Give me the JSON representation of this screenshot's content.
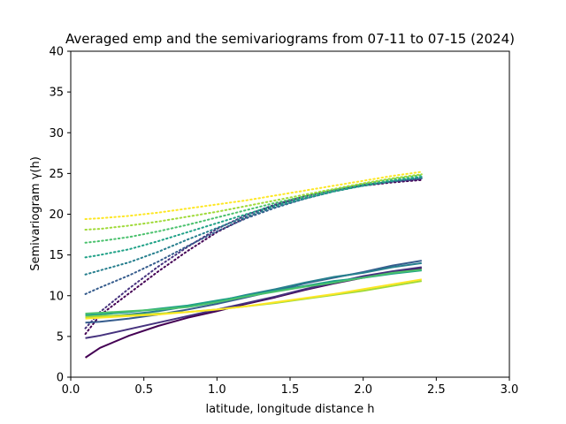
{
  "chart_data": {
    "type": "line",
    "title": "Averaged emp and the semivariograms from 07-11 to 07-15 (2024)",
    "xlabel": "latitude, longitude distance h",
    "ylabel": "Semivariogram γ(h)",
    "xlim": [
      0.0,
      3.0
    ],
    "ylim": [
      0,
      40
    ],
    "xticks": [
      "0.0",
      "0.5",
      "1.0",
      "1.5",
      "2.0",
      "2.5",
      "3.0"
    ],
    "yticks": [
      "0",
      "5",
      "10",
      "15",
      "20",
      "25",
      "30",
      "35",
      "40"
    ],
    "grid": false,
    "legend": false,
    "x": [
      0.1,
      0.2,
      0.4,
      0.6,
      0.8,
      1.0,
      1.2,
      1.4,
      1.6,
      1.8,
      2.0,
      2.2,
      2.4
    ],
    "empirical_series": [
      {
        "color": "#440154",
        "values": [
          2.4,
          3.6,
          5.1,
          6.3,
          7.3,
          8.1,
          9.0,
          9.8,
          10.7,
          11.5,
          12.2,
          12.9,
          13.4
        ]
      },
      {
        "color": "#46327e",
        "values": [
          4.8,
          5.1,
          5.9,
          6.7,
          7.5,
          8.3,
          9.1,
          9.9,
          10.8,
          11.6,
          12.4,
          13.0,
          13.5
        ]
      },
      {
        "color": "#365c8d",
        "values": [
          6.7,
          6.8,
          7.2,
          7.7,
          8.3,
          9.0,
          9.8,
          10.6,
          11.5,
          12.2,
          12.9,
          13.7,
          14.3
        ]
      },
      {
        "color": "#277f8e",
        "values": [
          7.3,
          7.4,
          7.7,
          8.1,
          8.7,
          9.3,
          10.1,
          10.8,
          11.6,
          12.3,
          12.8,
          13.5,
          14.0
        ]
      },
      {
        "color": "#1fa187",
        "values": [
          7.6,
          7.7,
          8.0,
          8.4,
          8.8,
          9.4,
          10.0,
          10.6,
          11.2,
          11.8,
          12.2,
          12.7,
          13.1
        ]
      },
      {
        "color": "#4ac16d",
        "values": [
          7.8,
          7.9,
          8.1,
          8.3,
          8.6,
          9.2,
          9.9,
          10.5,
          11.1,
          11.6,
          12.2,
          12.8,
          13.2
        ]
      },
      {
        "color": "#a0da39",
        "values": [
          7.4,
          7.5,
          7.6,
          7.8,
          8.0,
          8.3,
          8.7,
          9.1,
          9.6,
          10.1,
          10.6,
          11.2,
          11.8
        ]
      },
      {
        "color": "#fde725",
        "values": [
          7.2,
          7.3,
          7.5,
          7.7,
          8.0,
          8.3,
          8.7,
          9.2,
          9.7,
          10.2,
          10.8,
          11.4,
          12.0
        ]
      }
    ],
    "model_series": [
      {
        "color": "#440154",
        "values": [
          5.3,
          7.6,
          10.3,
          13.0,
          15.5,
          17.8,
          19.6,
          21.1,
          22.2,
          23.0,
          23.5,
          23.9,
          24.2
        ]
      },
      {
        "color": "#46327e",
        "values": [
          6.0,
          8.0,
          10.9,
          13.6,
          16.0,
          18.2,
          19.9,
          21.2,
          22.2,
          23.0,
          23.6,
          24.0,
          24.3
        ]
      },
      {
        "color": "#365c8d",
        "values": [
          10.2,
          11.0,
          12.5,
          14.2,
          16.1,
          17.9,
          19.5,
          20.8,
          21.9,
          22.8,
          23.5,
          24.0,
          24.4
        ]
      },
      {
        "color": "#277f8e",
        "values": [
          12.6,
          13.1,
          14.1,
          15.4,
          16.9,
          18.3,
          19.7,
          20.9,
          21.9,
          22.8,
          23.5,
          24.1,
          24.5
        ]
      },
      {
        "color": "#1fa187",
        "values": [
          14.7,
          15.0,
          15.7,
          16.7,
          17.8,
          18.9,
          20.0,
          21.1,
          22.0,
          22.8,
          23.5,
          24.1,
          24.6
        ]
      },
      {
        "color": "#4ac16d",
        "values": [
          16.5,
          16.7,
          17.2,
          17.9,
          18.7,
          19.6,
          20.5,
          21.4,
          22.2,
          23.0,
          23.7,
          24.3,
          24.8
        ]
      },
      {
        "color": "#a0da39",
        "values": [
          18.1,
          18.2,
          18.6,
          19.1,
          19.7,
          20.3,
          21.0,
          21.7,
          22.4,
          23.1,
          23.8,
          24.4,
          24.9
        ]
      },
      {
        "color": "#fde725",
        "values": [
          19.4,
          19.5,
          19.8,
          20.2,
          20.7,
          21.2,
          21.7,
          22.3,
          22.9,
          23.5,
          24.1,
          24.7,
          25.2
        ]
      }
    ]
  }
}
